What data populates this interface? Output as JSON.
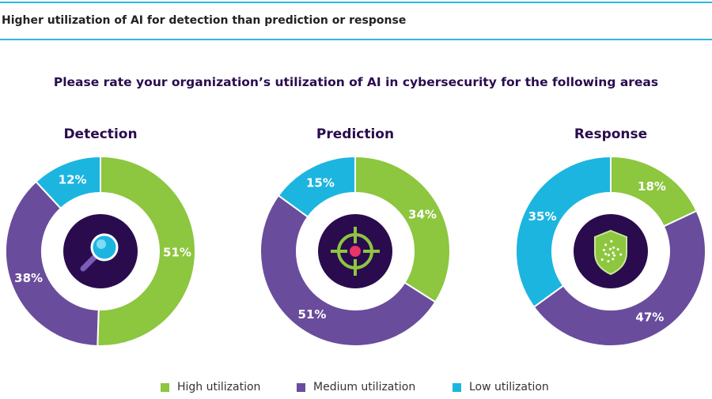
{
  "header": {
    "title": "Higher utilization of AI for detection than prediction or response"
  },
  "question": "Please rate your organization’s utilization of AI in cybersecurity for the following areas",
  "colors": {
    "high": "#8dc63f",
    "medium": "#6a4c9c",
    "low": "#1cb5e0",
    "icon_bg": "#2a0c4e",
    "accent": "#2fb8e6"
  },
  "chart_data": [
    {
      "type": "pie",
      "title": "Detection",
      "icon": "magnifier-icon",
      "categories": [
        "High utilization",
        "Medium utilization",
        "Low utilization"
      ],
      "values": [
        51,
        38,
        12
      ],
      "labels": [
        "51%",
        "38%",
        "12%"
      ]
    },
    {
      "type": "pie",
      "title": "Prediction",
      "icon": "crosshair-icon",
      "categories": [
        "High utilization",
        "Medium utilization",
        "Low utilization"
      ],
      "values": [
        34,
        51,
        15
      ],
      "labels": [
        "34%",
        "51%",
        "15%"
      ]
    },
    {
      "type": "pie",
      "title": "Response",
      "icon": "shield-icon",
      "categories": [
        "High utilization",
        "Medium utilization",
        "Low utilization"
      ],
      "values": [
        18,
        47,
        35
      ],
      "labels": [
        "18%",
        "47%",
        "35%"
      ]
    }
  ],
  "legend": [
    {
      "label": "High utilization",
      "key": "high"
    },
    {
      "label": "Medium utilization",
      "key": "medium"
    },
    {
      "label": "Low utilization",
      "key": "low"
    }
  ]
}
